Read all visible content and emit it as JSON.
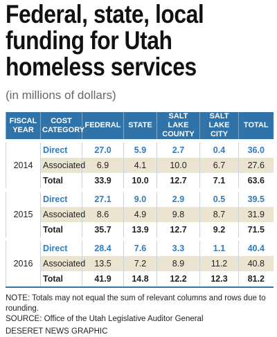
{
  "header": {
    "title_lines": [
      "Federal, state, local",
      "funding for Utah",
      "homeless services"
    ],
    "subtitle": "(in millions of dollars)"
  },
  "table": {
    "columns": [
      "FISCAL YEAR",
      "COST CATEGORY",
      "FEDERAL",
      "STATE",
      "SALT LAKE COUNTY",
      "SALT LAKE CITY",
      "TOTAL"
    ],
    "groups": [
      {
        "year": "2014",
        "rows": [
          {
            "category": "Direct",
            "values": [
              "27.0",
              "5.9",
              "2.7",
              "0.4",
              "36.0"
            ]
          },
          {
            "category": "Associated",
            "values": [
              "6.9",
              "4.1",
              "10.0",
              "6.7",
              "27.6"
            ]
          },
          {
            "category": "Total",
            "values": [
              "33.9",
              "10.0",
              "12.7",
              "7.1",
              "63.6"
            ]
          }
        ]
      },
      {
        "year": "2015",
        "rows": [
          {
            "category": "Direct",
            "values": [
              "27.1",
              "9.0",
              "2.9",
              "0.5",
              "39.5"
            ]
          },
          {
            "category": "Associated",
            "values": [
              "8.6",
              "4.9",
              "9.8",
              "8.7",
              "31.9"
            ]
          },
          {
            "category": "Total",
            "values": [
              "35.7",
              "13.9",
              "12.7",
              "9.2",
              "71.5"
            ]
          }
        ]
      },
      {
        "year": "2016",
        "rows": [
          {
            "category": "Direct",
            "values": [
              "28.4",
              "7.6",
              "3.3",
              "1.1",
              "40.4"
            ]
          },
          {
            "category": "Associated",
            "values": [
              "13.5",
              "7.2",
              "8.9",
              "11.2",
              "40.8"
            ]
          },
          {
            "category": "Total",
            "values": [
              "41.9",
              "14.8",
              "12.2",
              "12.3",
              "81.2"
            ]
          }
        ]
      }
    ]
  },
  "footer": {
    "note": "NOTE: Totals may not equal the sum of relevant columns and rows due to rounding.",
    "source": "SOURCE: Office of the Utah Legislative Auditor General",
    "credit": "DESERET NEWS GRAPHIC"
  }
}
